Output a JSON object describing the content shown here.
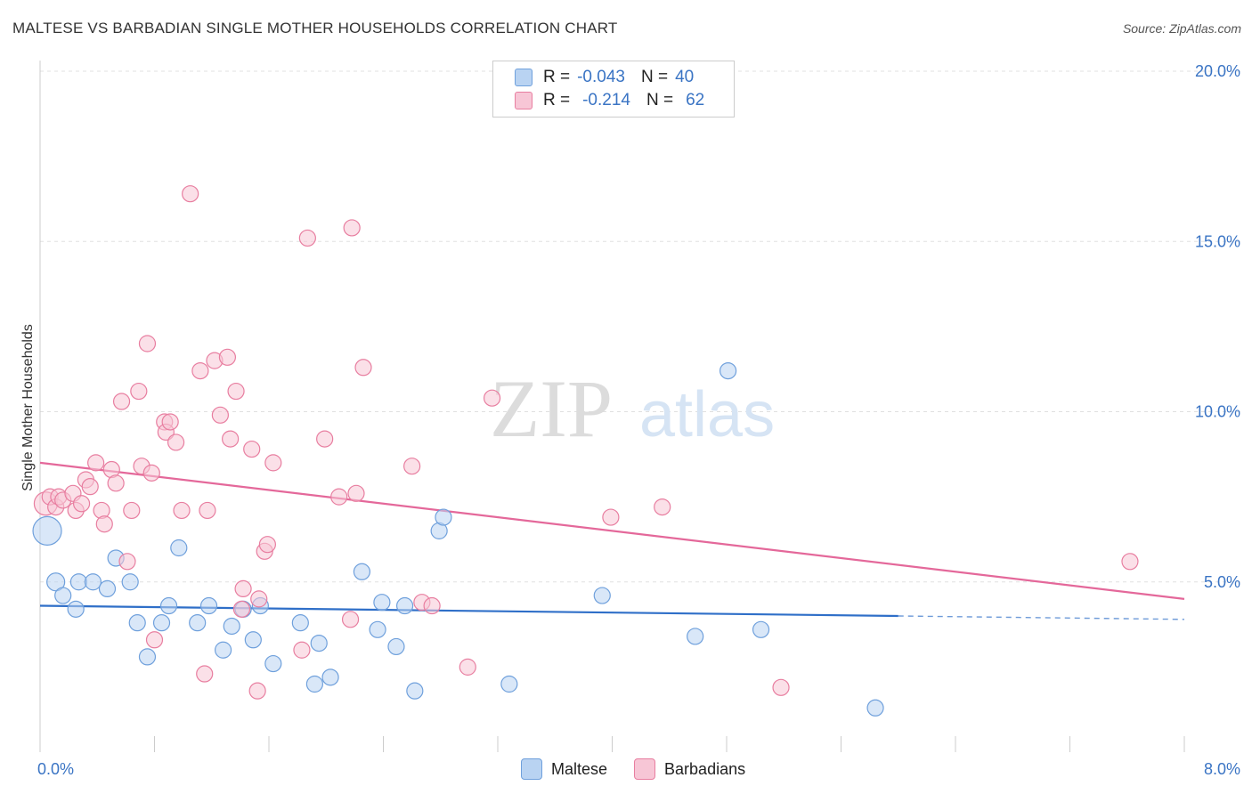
{
  "header": {
    "title": "MALTESE VS BARBADIAN SINGLE MOTHER HOUSEHOLDS CORRELATION CHART",
    "source": "Source: ZipAtlas.com"
  },
  "watermark": {
    "zip": "ZIP",
    "atlas": "atlas"
  },
  "legend": {
    "rows": [
      {
        "r_label": "R =",
        "r_value": "-0.043",
        "n_label": "N =",
        "n_value": "40",
        "color": "#a8c8f0"
      },
      {
        "r_label": "R =",
        "r_value": "-0.214",
        "n_label": "N =",
        "n_value": "62",
        "color": "#f5b8cc"
      }
    ]
  },
  "bottom_legend": {
    "maltese": "Maltese",
    "barbadians": "Barbadians"
  },
  "chart_data": {
    "type": "scatter",
    "title": "MALTESE VS BARBADIAN SINGLE MOTHER HOUSEHOLDS CORRELATION CHART",
    "ylabel": "Single Mother Households",
    "xlabel": "",
    "xlim": [
      0,
      8
    ],
    "ylim": [
      0,
      20
    ],
    "x_tick_labels": [
      "0.0%",
      "8.0%"
    ],
    "y_tick_labels": [
      "5.0%",
      "10.0%",
      "15.0%",
      "20.0%"
    ],
    "y_ticks": [
      5,
      10,
      15,
      20
    ],
    "grid": true,
    "legend_position": "top-center",
    "series": [
      {
        "name": "Maltese",
        "color": "#6fa0dc",
        "fill": "#b9d3f2",
        "trend": {
          "x0": 0,
          "y0": 4.3,
          "x1": 8,
          "y1": 3.9,
          "solid_until": 6.0
        },
        "points": [
          [
            0.05,
            6.5,
            16
          ],
          [
            0.11,
            5.0,
            10
          ],
          [
            0.16,
            4.6,
            9
          ],
          [
            0.25,
            4.2,
            9
          ],
          [
            0.27,
            5.0,
            9
          ],
          [
            0.37,
            5.0,
            9
          ],
          [
            0.47,
            4.8,
            9
          ],
          [
            0.53,
            5.7,
            9
          ],
          [
            0.63,
            5.0,
            9
          ],
          [
            0.68,
            3.8,
            9
          ],
          [
            0.75,
            2.8,
            9
          ],
          [
            0.9,
            4.3,
            9
          ],
          [
            0.85,
            3.8,
            9
          ],
          [
            0.97,
            6.0,
            9
          ],
          [
            1.1,
            3.8,
            9
          ],
          [
            1.18,
            4.3,
            9
          ],
          [
            1.28,
            3.0,
            9
          ],
          [
            1.34,
            3.7,
            9
          ],
          [
            1.42,
            4.2,
            9
          ],
          [
            1.49,
            3.3,
            9
          ],
          [
            1.54,
            4.3,
            9
          ],
          [
            1.63,
            2.6,
            9
          ],
          [
            1.82,
            3.8,
            9
          ],
          [
            1.92,
            2.0,
            9
          ],
          [
            1.95,
            3.2,
            9
          ],
          [
            2.03,
            2.2,
            9
          ],
          [
            2.25,
            5.3,
            9
          ],
          [
            2.36,
            3.6,
            9
          ],
          [
            2.39,
            4.4,
            9
          ],
          [
            2.49,
            3.1,
            9
          ],
          [
            2.55,
            4.3,
            9
          ],
          [
            2.62,
            1.8,
            9
          ],
          [
            2.79,
            6.5,
            9
          ],
          [
            2.82,
            6.9,
            9
          ],
          [
            3.28,
            2.0,
            9
          ],
          [
            3.93,
            4.6,
            9
          ],
          [
            4.58,
            3.4,
            9
          ],
          [
            4.81,
            11.2,
            9
          ],
          [
            5.04,
            3.6,
            9
          ],
          [
            5.84,
            1.3,
            9
          ]
        ]
      },
      {
        "name": "Barbadians",
        "color": "#e87ea0",
        "fill": "#f7c6d6",
        "trend": {
          "x0": 0,
          "y0": 8.5,
          "x1": 8,
          "y1": 4.5
        },
        "points": [
          [
            0.04,
            7.3,
            13
          ],
          [
            0.07,
            7.5,
            9
          ],
          [
            0.11,
            7.2,
            9
          ],
          [
            0.13,
            7.5,
            9
          ],
          [
            0.16,
            7.4,
            9
          ],
          [
            0.23,
            7.6,
            9
          ],
          [
            0.25,
            7.1,
            9
          ],
          [
            0.29,
            7.3,
            9
          ],
          [
            0.32,
            8.0,
            9
          ],
          [
            0.35,
            7.8,
            9
          ],
          [
            0.39,
            8.5,
            9
          ],
          [
            0.43,
            7.1,
            9
          ],
          [
            0.45,
            6.7,
            9
          ],
          [
            0.5,
            8.3,
            9
          ],
          [
            0.53,
            7.9,
            9
          ],
          [
            0.57,
            10.3,
            9
          ],
          [
            0.61,
            5.6,
            9
          ],
          [
            0.64,
            7.1,
            9
          ],
          [
            0.69,
            10.6,
            9
          ],
          [
            0.71,
            8.4,
            9
          ],
          [
            0.75,
            12.0,
            9
          ],
          [
            0.78,
            8.2,
            9
          ],
          [
            0.8,
            3.3,
            9
          ],
          [
            0.87,
            9.7,
            9
          ],
          [
            0.88,
            9.4,
            9
          ],
          [
            0.91,
            9.7,
            9
          ],
          [
            0.95,
            9.1,
            9
          ],
          [
            0.99,
            7.1,
            9
          ],
          [
            1.05,
            16.4,
            9
          ],
          [
            1.12,
            11.2,
            9
          ],
          [
            1.15,
            2.3,
            9
          ],
          [
            1.17,
            7.1,
            9
          ],
          [
            1.22,
            11.5,
            9
          ],
          [
            1.26,
            9.9,
            9
          ],
          [
            1.31,
            11.6,
            9
          ],
          [
            1.33,
            9.2,
            9
          ],
          [
            1.37,
            10.6,
            9
          ],
          [
            1.41,
            4.2,
            9
          ],
          [
            1.42,
            4.8,
            9
          ],
          [
            1.48,
            8.9,
            9
          ],
          [
            1.52,
            1.8,
            9
          ],
          [
            1.53,
            4.5,
            9
          ],
          [
            1.57,
            5.9,
            9
          ],
          [
            1.59,
            6.1,
            9
          ],
          [
            1.63,
            8.5,
            9
          ],
          [
            1.83,
            3.0,
            9
          ],
          [
            1.87,
            15.1,
            9
          ],
          [
            1.99,
            9.2,
            9
          ],
          [
            2.09,
            7.5,
            9
          ],
          [
            2.17,
            3.9,
            9
          ],
          [
            2.18,
            15.4,
            9
          ],
          [
            2.21,
            7.6,
            9
          ],
          [
            2.26,
            11.3,
            9
          ],
          [
            2.6,
            8.4,
            9
          ],
          [
            2.67,
            4.4,
            9
          ],
          [
            2.74,
            4.3,
            9
          ],
          [
            2.99,
            2.5,
            9
          ],
          [
            3.16,
            10.4,
            9
          ],
          [
            3.99,
            6.9,
            9
          ],
          [
            4.35,
            7.2,
            9
          ],
          [
            5.18,
            1.9,
            9
          ],
          [
            7.62,
            5.6,
            9
          ]
        ]
      }
    ]
  }
}
